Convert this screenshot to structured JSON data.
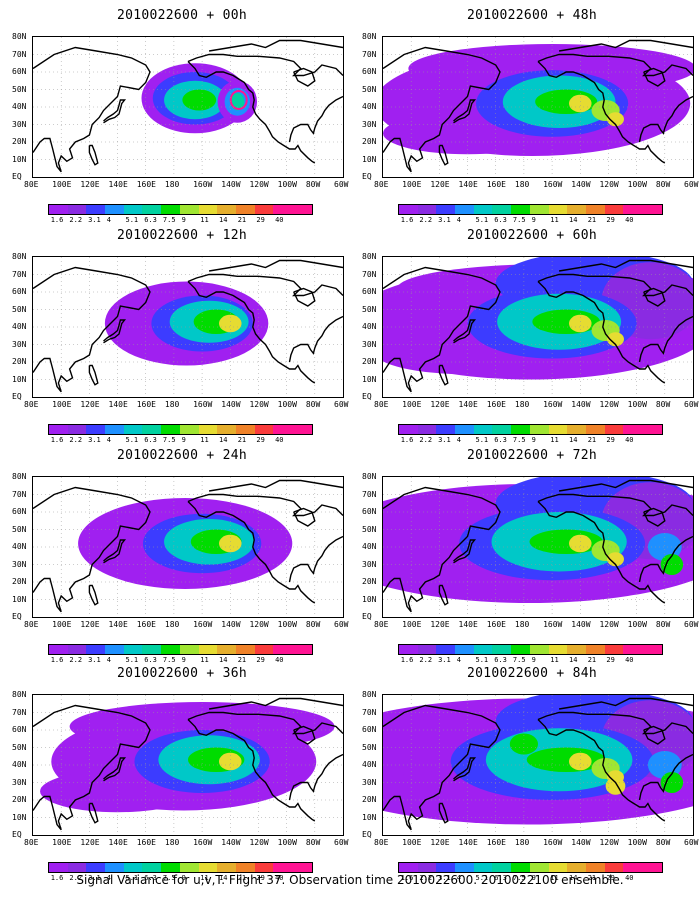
{
  "footer": "Signal Variance for u,v,T. Flight 37. Observation time 2010022600. 2010022100 ensemble.",
  "panels": [
    {
      "title": "2010022600 + 00h",
      "level": 0
    },
    {
      "title": "2010022600 + 48h",
      "level": 4
    },
    {
      "title": "2010022600 + 12h",
      "level": 1
    },
    {
      "title": "2010022600 + 60h",
      "level": 5
    },
    {
      "title": "2010022600 + 24h",
      "level": 2
    },
    {
      "title": "2010022600 + 72h",
      "level": 6
    },
    {
      "title": "2010022600 + 36h",
      "level": 3
    },
    {
      "title": "2010022600 + 84h",
      "level": 7
    }
  ],
  "xlabels": [
    "80E",
    "100E",
    "120E",
    "140E",
    "160E",
    "180",
    "160W",
    "140W",
    "120W",
    "100W",
    "80W",
    "60W"
  ],
  "ylabels": [
    "80N",
    "70N",
    "60N",
    "50N",
    "40N",
    "30N",
    "20N",
    "10N",
    "EQ"
  ],
  "colorbar": {
    "levels": [
      "1.6",
      "2.2",
      "3.1",
      "4",
      "5.1",
      "6.3",
      "7.5",
      "9",
      "11",
      "14",
      "21",
      "29",
      "40"
    ],
    "colors": [
      "#a020f0",
      "#8a2be2",
      "#3c3cff",
      "#1e90ff",
      "#00c8c8",
      "#00d2a0",
      "#00dc00",
      "#a0e632",
      "#e6dc32",
      "#e6af2d",
      "#f08228",
      "#fa3c3c",
      "#ff1493"
    ]
  }
}
